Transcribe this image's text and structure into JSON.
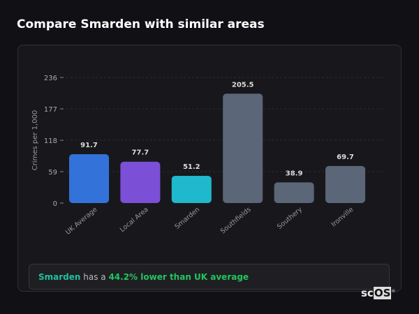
{
  "header": {
    "title": "Compare Smarden with similar areas"
  },
  "chart_data": {
    "type": "bar",
    "categories": [
      "UK Average",
      "Local Area",
      "Smarden",
      "Southfields",
      "Southery",
      "Ironville"
    ],
    "values": [
      91.7,
      77.7,
      51.2,
      205.5,
      38.9,
      69.7
    ],
    "value_labels": [
      "91.7",
      "77.7",
      "51.2",
      "205.5",
      "38.9",
      "69.7"
    ],
    "colors": [
      "#3373d9",
      "#7b4fd6",
      "#1fb8cc",
      "#5b6678",
      "#5b6678",
      "#5b6678"
    ],
    "ylabel": "Crimes per 1,000",
    "xlabel": "",
    "yticks": [
      0,
      59,
      118,
      177,
      236
    ],
    "ylim": [
      0,
      236
    ],
    "grid": true,
    "legend": "none"
  },
  "summary": {
    "area": "Smarden",
    "middle": " has a ",
    "comparison": "44.2% lower than UK average",
    "area_color": "#20c0a0",
    "comparison_color": "#22c55e"
  },
  "logo": {
    "text_sc": "sc",
    "text_os": "OS",
    "mark": "®"
  }
}
